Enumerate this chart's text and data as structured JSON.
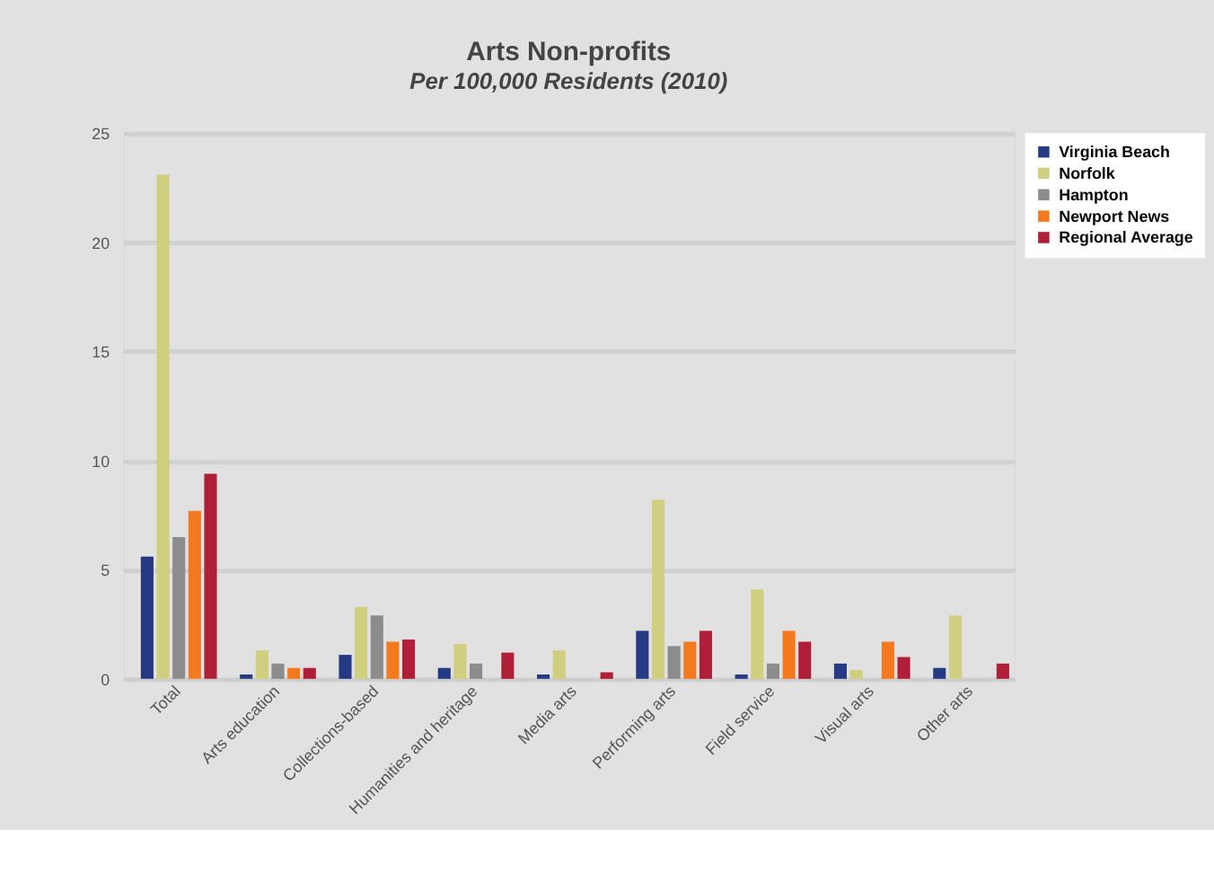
{
  "chart_data": {
    "type": "bar",
    "title": "Arts Non-profits",
    "subtitle": "Per 100,000 Residents (2010)",
    "categories": [
      "Total",
      "Arts education",
      "Collections-based",
      "Humanities and heritage",
      "Media arts",
      "Performing arts",
      "Field service",
      "Visual arts",
      "Other arts"
    ],
    "series": [
      {
        "name": "Virginia Beach",
        "color": "#263a83",
        "values": [
          5.6,
          0.2,
          1.1,
          0.5,
          0.2,
          2.2,
          0.2,
          0.7,
          0.5
        ]
      },
      {
        "name": "Norfolk",
        "color": "#cfcf7f",
        "values": [
          23.1,
          1.3,
          3.3,
          1.6,
          1.3,
          8.2,
          4.1,
          0.4,
          2.9
        ]
      },
      {
        "name": "Hampton",
        "color": "#8c8c8c",
        "values": [
          6.5,
          0.7,
          2.9,
          0.7,
          0,
          1.5,
          0.7,
          0,
          0
        ]
      },
      {
        "name": "Newport News",
        "color": "#f47a20",
        "values": [
          7.7,
          0.5,
          1.7,
          0,
          0,
          1.7,
          2.2,
          1.7,
          0
        ]
      },
      {
        "name": "Regional Average",
        "color": "#b01f38",
        "values": [
          9.4,
          0.5,
          1.8,
          1.2,
          0.3,
          2.2,
          1.7,
          1.0,
          0.7
        ]
      }
    ],
    "ylim": [
      0,
      25
    ],
    "yticks": [
      0,
      5,
      10,
      15,
      20,
      25
    ],
    "grid": "y",
    "legend": "top right"
  }
}
